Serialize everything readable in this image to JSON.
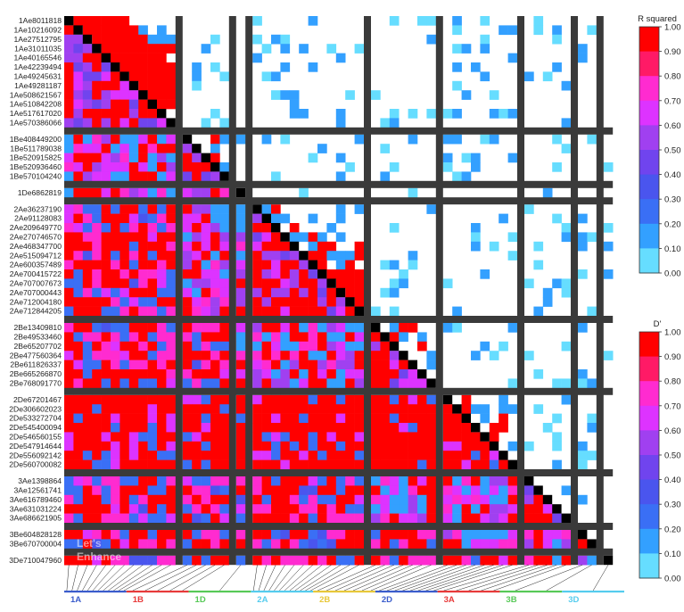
{
  "chart_data": {
    "type": "heatmap",
    "title": "",
    "upper_triangle_metric": "R squared",
    "lower_triangle_metric": "D'",
    "legend_ticks": [
      "1.00",
      "0.90",
      "0.80",
      "0.70",
      "0.60",
      "0.50",
      "0.40",
      "0.30",
      "0.20",
      "0.10",
      "0.00"
    ],
    "legend_colors": [
      "#ff0000",
      "#ff1a66",
      "#ff2bd0",
      "#dd33ff",
      "#a040f0",
      "#7044ee",
      "#4a55ee",
      "#3a6ff5",
      "#33a0ff",
      "#66ddff",
      "#ffffff"
    ],
    "markers": [
      {
        "name": "1Ae8011818",
        "group": "1A"
      },
      {
        "name": "1Ae10216092",
        "group": "1A"
      },
      {
        "name": "1Ae27512795",
        "group": "1A"
      },
      {
        "name": "1Ae31011035",
        "group": "1A"
      },
      {
        "name": "1Ae40165546",
        "group": "1A"
      },
      {
        "name": "1Ae42239494",
        "group": "1A"
      },
      {
        "name": "1Ae49245631",
        "group": "1A"
      },
      {
        "name": "1Ae49281187",
        "group": "1A"
      },
      {
        "name": "1Ae508621567",
        "group": "1A"
      },
      {
        "name": "1Ae510842208",
        "group": "1A"
      },
      {
        "name": "1Ae517617020",
        "group": "1A"
      },
      {
        "name": "1Ae570386066",
        "group": "1A"
      },
      {
        "name": "1Be408449200",
        "group": "1B"
      },
      {
        "name": "1Be511789038",
        "group": "1B"
      },
      {
        "name": "1Be520915825",
        "group": "1B"
      },
      {
        "name": "1Be520936460",
        "group": "1B"
      },
      {
        "name": "1Be570104240",
        "group": "1B"
      },
      {
        "name": "1De6862819",
        "group": "1D"
      },
      {
        "name": "2Ae36237190",
        "group": "2A"
      },
      {
        "name": "2Ae91128083",
        "group": "2A"
      },
      {
        "name": "2Ae209649770",
        "group": "2A"
      },
      {
        "name": "2Ae270746570",
        "group": "2A"
      },
      {
        "name": "2Ae468347700",
        "group": "2A"
      },
      {
        "name": "2Ae515094712",
        "group": "2A"
      },
      {
        "name": "2Ae600357489",
        "group": "2A"
      },
      {
        "name": "2Ae700415722",
        "group": "2A"
      },
      {
        "name": "2Ae707007673",
        "group": "2A"
      },
      {
        "name": "2Ae707000443",
        "group": "2A"
      },
      {
        "name": "2Ae712004180",
        "group": "2A"
      },
      {
        "name": "2Ae712844205",
        "group": "2A"
      },
      {
        "name": "2Be13409810",
        "group": "2B"
      },
      {
        "name": "2Be49533460",
        "group": "2B"
      },
      {
        "name": "2Be65207702",
        "group": "2B"
      },
      {
        "name": "2Be477560364",
        "group": "2B"
      },
      {
        "name": "2Be611826337",
        "group": "2B"
      },
      {
        "name": "2Be665266870",
        "group": "2B"
      },
      {
        "name": "2Be768091770",
        "group": "2B"
      },
      {
        "name": "2De67201467",
        "group": "2D"
      },
      {
        "name": "2De306602023",
        "group": "2D"
      },
      {
        "name": "2De533272704",
        "group": "2D"
      },
      {
        "name": "2De545400094",
        "group": "2D"
      },
      {
        "name": "2De546560155",
        "group": "2D"
      },
      {
        "name": "2De547914644",
        "group": "2D"
      },
      {
        "name": "2De556092142",
        "group": "2D"
      },
      {
        "name": "2De560700082",
        "group": "2D"
      },
      {
        "name": "3Ae1398864",
        "group": "3A"
      },
      {
        "name": "3Ae12561741",
        "group": "3A"
      },
      {
        "name": "3Ae616789460",
        "group": "3A"
      },
      {
        "name": "3Ae631031224",
        "group": "3A"
      },
      {
        "name": "3Ae686621905",
        "group": "3A"
      },
      {
        "name": "3Be604828128",
        "group": "3B"
      },
      {
        "name": "3Be670700004",
        "group": "3B"
      },
      {
        "name": "3De710047960",
        "group": "3D"
      }
    ],
    "chromosome_axis": [
      {
        "label": "1A",
        "color": "#3a5ccc"
      },
      {
        "label": "1B",
        "color": "#e83a3a"
      },
      {
        "label": "1D",
        "color": "#57c957"
      },
      {
        "label": "2A",
        "color": "#55ccee"
      },
      {
        "label": "2B",
        "color": "#e8c83a"
      },
      {
        "label": "2D",
        "color": "#3a5ccc"
      },
      {
        "label": "3A",
        "color": "#e83a3a"
      },
      {
        "label": "3B",
        "color": "#57c957"
      },
      {
        "label": "3D",
        "color": "#55ccee"
      }
    ],
    "watermark": [
      "Let's",
      "Enhance"
    ]
  }
}
